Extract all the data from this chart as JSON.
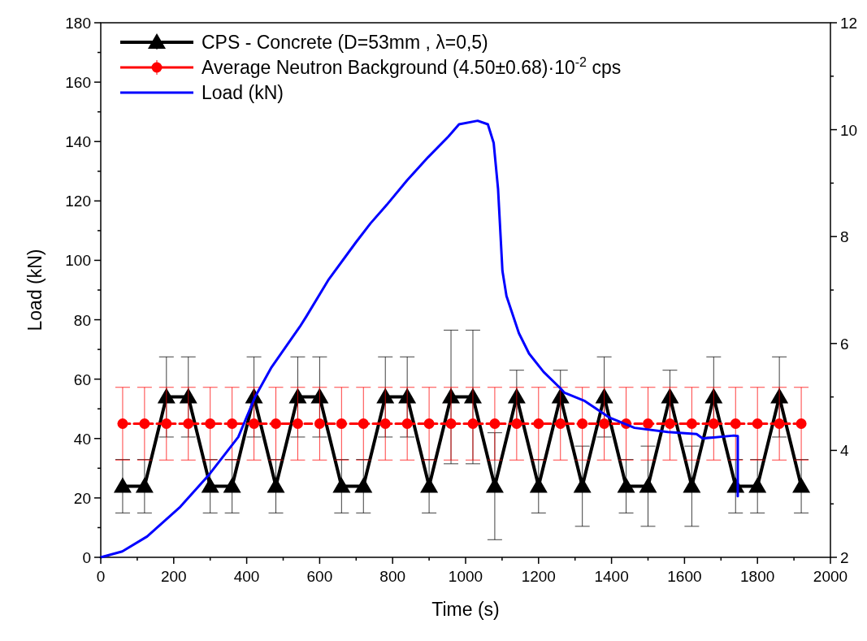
{
  "chart_data": {
    "type": "line",
    "xlabel": "Time (s)",
    "ylabel": "Load (kN)",
    "xlim": [
      0,
      2000
    ],
    "xticks": [
      0,
      {
        "value": 100,
        "label": null
      },
      200,
      {
        "value": 300,
        "label": null
      },
      400,
      {
        "value": 500,
        "label": null
      },
      600,
      {
        "value": 700,
        "label": null
      },
      800,
      {
        "value": 900,
        "label": null
      },
      1000,
      {
        "value": 1100,
        "label": null
      },
      1200,
      {
        "value": 1300,
        "label": null
      },
      1400,
      {
        "value": 1500,
        "label": null
      },
      1600,
      {
        "value": 1700,
        "label": null
      },
      1800,
      {
        "value": 1900,
        "label": null
      },
      2000
    ],
    "ylim": [
      0,
      180
    ],
    "yticks": [
      0,
      {
        "value": 10,
        "label": null
      },
      20,
      {
        "value": 30,
        "label": null
      },
      40,
      {
        "value": 50,
        "label": null
      },
      60,
      {
        "value": 70,
        "label": null
      },
      80,
      {
        "value": 90,
        "label": null
      },
      100,
      {
        "value": 110,
        "label": null
      },
      120,
      {
        "value": 130,
        "label": null
      },
      140,
      {
        "value": 150,
        "label": null
      },
      160,
      {
        "value": 170,
        "label": null
      },
      180
    ],
    "y2lim": [
      2,
      12
    ],
    "y2ticks": [
      2,
      {
        "value": 3,
        "label": null
      },
      4,
      {
        "value": 5,
        "label": null
      },
      6,
      {
        "value": 7,
        "label": null
      },
      8,
      {
        "value": 9,
        "label": null
      },
      10,
      {
        "value": 11,
        "label": null
      },
      12
    ],
    "legend": "top left",
    "grid": false,
    "series": [
      {
        "name": "CPS - Concrete (D=53mm , λ=0,5)",
        "color": "#000000",
        "axis": "y2",
        "marker": "triangle",
        "line_style": "solid",
        "x": [
          60,
          120,
          180,
          240,
          300,
          360,
          420,
          480,
          540,
          600,
          660,
          720,
          780,
          840,
          900,
          960,
          1020,
          1080,
          1140,
          1200,
          1260,
          1320,
          1380,
          1440,
          1500,
          1560,
          1620,
          1680,
          1740,
          1800,
          1860,
          1920
        ],
        "values": [
          3.33,
          3.33,
          5,
          5,
          3.33,
          3.33,
          5,
          3.33,
          5,
          5,
          3.33,
          3.33,
          5,
          5,
          3.33,
          5,
          5,
          3.33,
          5,
          3.33,
          5,
          3.33,
          5,
          3.33,
          3.33,
          5,
          3.33,
          5,
          3.33,
          3.33,
          5,
          3.33
        ],
        "errors": [
          0.5,
          0.5,
          0.75,
          0.75,
          0.5,
          0.5,
          0.75,
          0.5,
          0.75,
          0.75,
          0.5,
          0.5,
          0.75,
          0.75,
          0.5,
          1.25,
          1.25,
          1,
          0.5,
          0.5,
          0.5,
          0.75,
          0.75,
          0.5,
          0.75,
          0.5,
          0.75,
          0.75,
          0.5,
          0.5,
          0.75,
          0.5
        ]
      },
      {
        "name": "Average Neutron Background (4.50±0.68)·10$^{-2}$ cps",
        "color": "#ff0000",
        "axis": "y2",
        "marker": "circle",
        "line_style": "dashed",
        "x": [
          60,
          120,
          180,
          240,
          300,
          360,
          420,
          480,
          540,
          600,
          660,
          720,
          780,
          840,
          900,
          960,
          1020,
          1080,
          1140,
          1200,
          1260,
          1320,
          1380,
          1440,
          1500,
          1560,
          1620,
          1680,
          1740,
          1800,
          1860,
          1920
        ],
        "values": [
          4.5,
          4.5,
          4.5,
          4.5,
          4.5,
          4.5,
          4.5,
          4.5,
          4.5,
          4.5,
          4.5,
          4.5,
          4.5,
          4.5,
          4.5,
          4.5,
          4.5,
          4.5,
          4.5,
          4.5,
          4.5,
          4.5,
          4.5,
          4.5,
          4.5,
          4.5,
          4.5,
          4.5,
          4.5,
          4.5,
          4.5,
          4.5
        ],
        "errors": [
          0.68,
          0.68,
          0.68,
          0.68,
          0.68,
          0.68,
          0.68,
          0.68,
          0.68,
          0.68,
          0.68,
          0.68,
          0.68,
          0.68,
          0.68,
          0.68,
          0.68,
          0.68,
          0.68,
          0.68,
          0.68,
          0.68,
          0.68,
          0.68,
          0.68,
          0.68,
          0.68,
          0.68,
          0.68,
          0.68,
          0.68,
          0.68
        ]
      },
      {
        "name": "Load (kN)",
        "color": "#0000ff",
        "marker": "none",
        "line_style": "solid",
        "x": [
          0,
          59,
          127,
          218,
          298,
          377,
          423,
          468,
          546,
          563,
          625,
          699,
          739,
          784,
          840,
          897,
          953,
          982,
          1033,
          1061,
          1077,
          1089,
          1101,
          1112,
          1146,
          1174,
          1214,
          1260,
          1271,
          1327,
          1395,
          1463,
          1554,
          1633,
          1650,
          1735,
          1746,
          1746
        ],
        "values": [
          0,
          2,
          7,
          17,
          28,
          40.5,
          54,
          64,
          77.7,
          81,
          93.6,
          106,
          112.4,
          118.7,
          127,
          134.7,
          141.7,
          145.8,
          147,
          145.8,
          139.5,
          124,
          96.4,
          88,
          75.5,
          68.6,
          62.4,
          56.9,
          55.4,
          52.6,
          47,
          43.6,
          42.2,
          41.5,
          40,
          41,
          40.8,
          20.6
        ]
      }
    ]
  }
}
